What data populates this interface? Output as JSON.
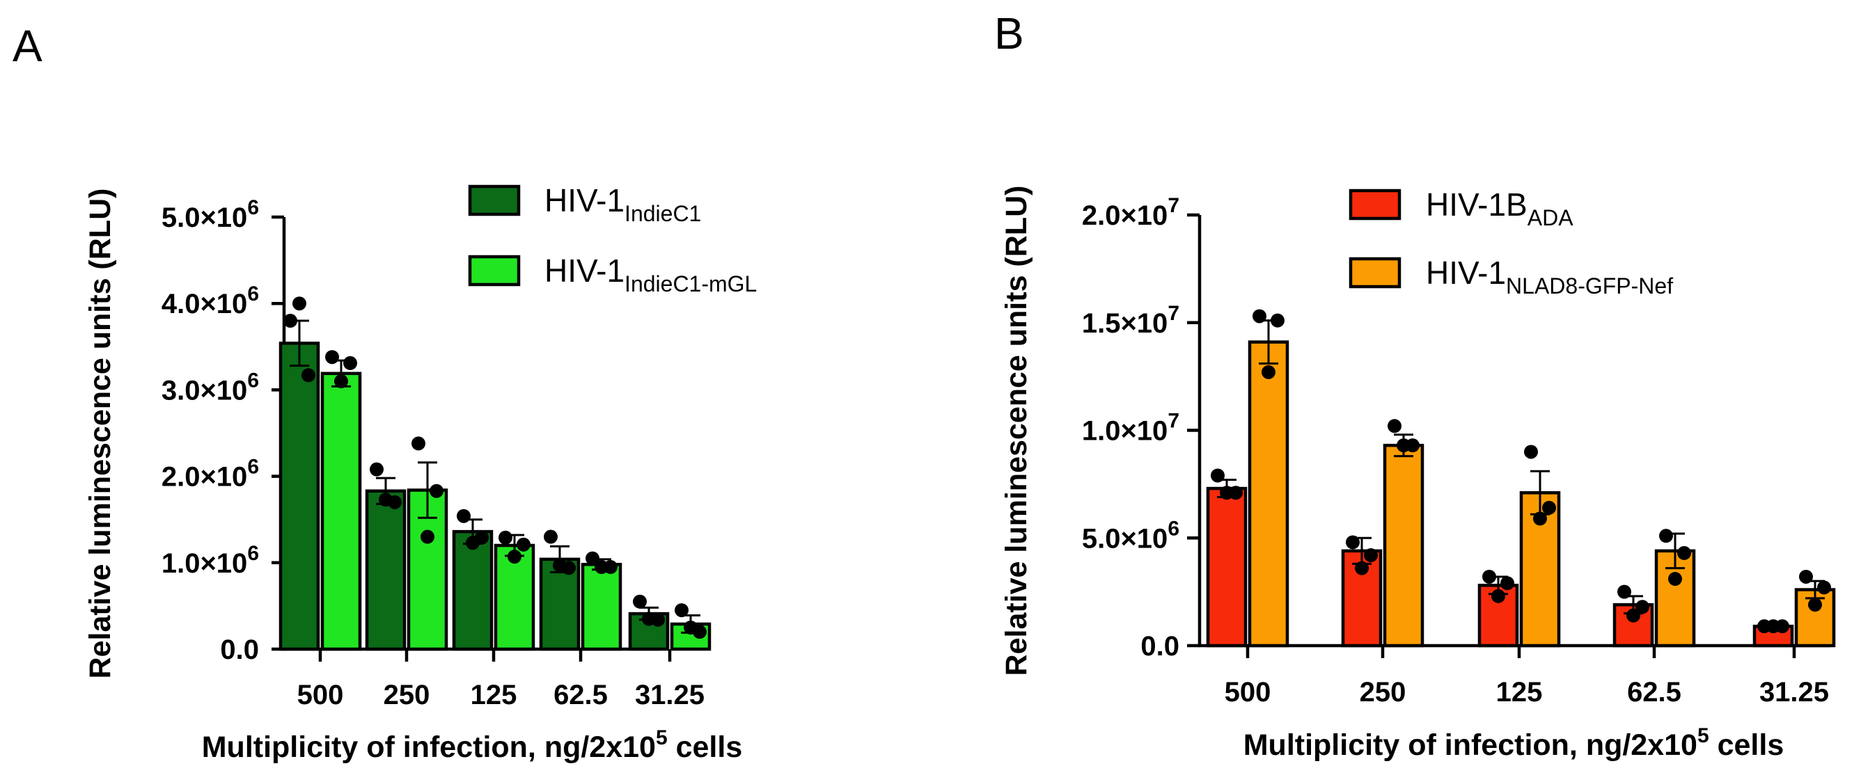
{
  "chart_data": [
    {
      "panel": "A",
      "type": "bar",
      "xlabel": "Multiplicity of infection, ng/2x10",
      "xlabel_sup": "5",
      "xlabel_tail": " cells",
      "ylabel": "Relative luminescence units (RLU)",
      "categories": [
        "500",
        "250",
        "125",
        "62.5",
        "31.25"
      ],
      "ylim": [
        0,
        5000000
      ],
      "yticks": [
        {
          "value": 0,
          "label": "0.0",
          "sup": ""
        },
        {
          "value": 1000000,
          "label": "1.0×10",
          "sup": "6"
        },
        {
          "value": 2000000,
          "label": "2.0×10",
          "sup": "6"
        },
        {
          "value": 3000000,
          "label": "3.0×10",
          "sup": "6"
        },
        {
          "value": 4000000,
          "label": "4.0×10",
          "sup": "6"
        },
        {
          "value": 5000000,
          "label": "5.0×10",
          "sup": "6"
        }
      ],
      "series": [
        {
          "name": "HIV-1",
          "name_sub": "IndieC1",
          "color": "#0b6b17",
          "values": [
            3540000,
            1830000,
            1360000,
            1040000,
            410000
          ],
          "errors": [
            260000,
            150000,
            140000,
            150000,
            70000
          ],
          "points": [
            [
              3800000,
              4000000,
              3170000
            ],
            [
              2080000,
              1730000,
              1700000
            ],
            [
              1540000,
              1230000,
              1290000
            ],
            [
              1300000,
              970000,
              940000
            ],
            [
              550000,
              350000,
              340000
            ]
          ]
        },
        {
          "name": "HIV-1",
          "name_sub": "IndieC1-mGL",
          "color": "#22e522",
          "values": [
            3190000,
            1840000,
            1200000,
            980000,
            290000
          ],
          "errors": [
            150000,
            320000,
            120000,
            60000,
            100000
          ],
          "points": [
            [
              3380000,
              3100000,
              3310000
            ],
            [
              2380000,
              1300000,
              1830000
            ],
            [
              1290000,
              1070000,
              1210000
            ],
            [
              1050000,
              950000,
              950000
            ],
            [
              450000,
              250000,
              200000
            ]
          ]
        }
      ]
    },
    {
      "panel": "B",
      "type": "bar",
      "xlabel": "Multiplicity of infection, ng/2x10",
      "xlabel_sup": "5",
      "xlabel_tail": " cells",
      "ylabel": "Relative luminescence units (RLU)",
      "categories": [
        "500",
        "250",
        "125",
        "62.5",
        "31.25"
      ],
      "ylim": [
        0,
        20000000
      ],
      "yticks": [
        {
          "value": 0,
          "label": "0.0",
          "sup": ""
        },
        {
          "value": 5000000,
          "label": "5.0×10",
          "sup": "6"
        },
        {
          "value": 10000000,
          "label": "1.0×10",
          "sup": "7"
        },
        {
          "value": 15000000,
          "label": "1.5×10",
          "sup": "7"
        },
        {
          "value": 20000000,
          "label": "2.0×10",
          "sup": "7"
        }
      ],
      "series": [
        {
          "name": "HIV-1B",
          "name_sub": "ADA",
          "color": "#f72a0c",
          "values": [
            7300000,
            4400000,
            2800000,
            1900000,
            900000
          ],
          "errors": [
            400000,
            600000,
            400000,
            400000,
            200000
          ],
          "points": [
            [
              7900000,
              7100000,
              7100000
            ],
            [
              4800000,
              3600000,
              4200000
            ],
            [
              3200000,
              2300000,
              2900000
            ],
            [
              2500000,
              1400000,
              1800000
            ],
            [
              900000,
              900000,
              900000
            ]
          ]
        },
        {
          "name": "HIV-1",
          "name_sub": "NLAD8-GFP-Nef",
          "color": "#fb9d02",
          "values": [
            14100000,
            9300000,
            7100000,
            4400000,
            2600000
          ],
          "errors": [
            1000000,
            500000,
            1000000,
            800000,
            400000
          ],
          "points": [
            [
              15300000,
              12700000,
              15100000
            ],
            [
              10200000,
              9300000,
              9300000
            ],
            [
              9000000,
              5900000,
              6400000
            ],
            [
              5100000,
              3100000,
              4300000
            ],
            [
              3200000,
              1900000,
              2700000
            ]
          ]
        }
      ]
    }
  ]
}
